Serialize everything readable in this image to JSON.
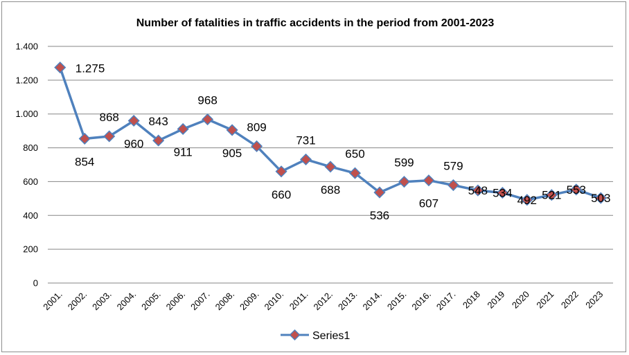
{
  "chart_data": {
    "type": "line",
    "title": "Number of fatalities in traffic accidents in the period from 2001-2023",
    "categories": [
      "2001.",
      "2002.",
      "2003.",
      "2004.",
      "2005.",
      "2006.",
      "2007.",
      "2008.",
      "2009.",
      "2010.",
      "2011.",
      "2012.",
      "2013.",
      "2014.",
      "2015.",
      "2016.",
      "2017.",
      "2018",
      "2019",
      "2020",
      "2021",
      "2022",
      "2023"
    ],
    "series": [
      {
        "name": "Series1",
        "values": [
          1275,
          854,
          868,
          960,
          843,
          911,
          968,
          905,
          809,
          660,
          731,
          688,
          650,
          536,
          599,
          607,
          579,
          548,
          534,
          492,
          521,
          553,
          503
        ],
        "labels": [
          "1.275",
          "854",
          "868",
          "960",
          "843",
          "911",
          "968",
          "905",
          "809",
          "660",
          "731",
          "688",
          "650",
          "536",
          "599",
          "607",
          "579",
          "548",
          "534",
          "492",
          "521",
          "553",
          "503"
        ]
      }
    ],
    "ylim": [
      0,
      1400
    ],
    "yticks": [
      0,
      200,
      400,
      600,
      800,
      1000,
      1200,
      1400
    ],
    "ytick_labels": [
      "0",
      "200",
      "400",
      "600",
      "800",
      "1.000",
      "1.200",
      "1.400"
    ],
    "xlabel": "",
    "ylabel": "",
    "grid": true,
    "legend_position": "bottom",
    "colors": {
      "line": "#4f81bd",
      "marker_fill": "#c0504d",
      "marker_border": "#4f81bd",
      "grid": "#868686"
    }
  }
}
